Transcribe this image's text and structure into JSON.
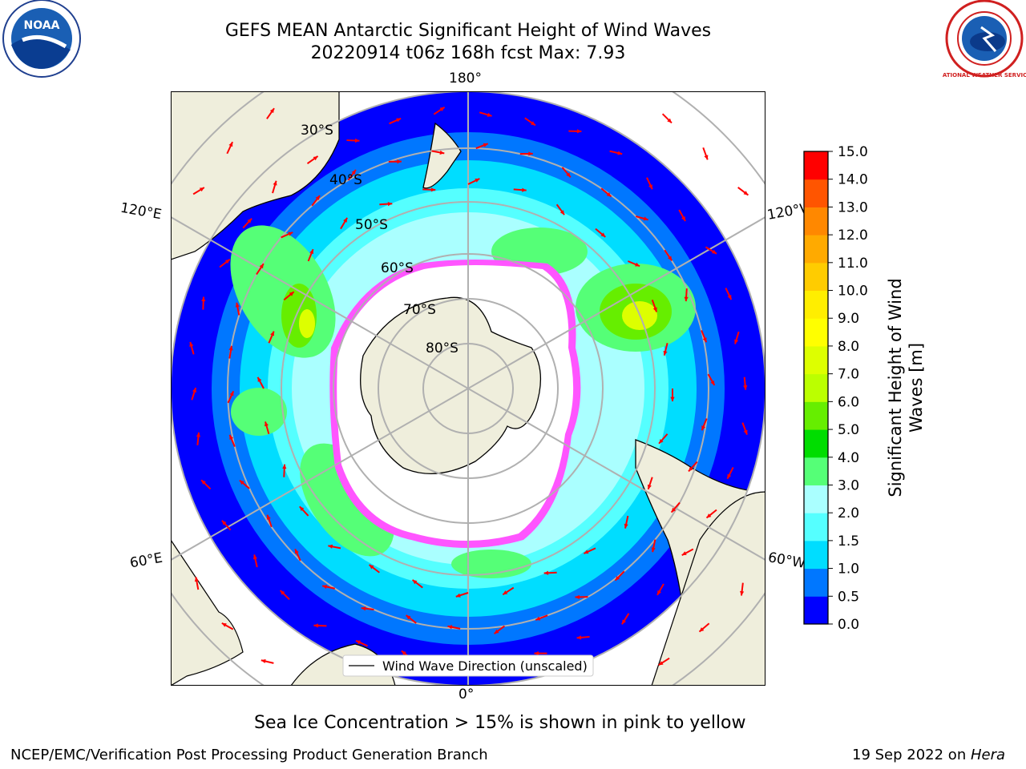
{
  "title": {
    "line1": "GEFS MEAN Antarctic Significant Height of Wind Waves",
    "line2": "20220914 t06z 168h fcst   Max: 7.93"
  },
  "map": {
    "lon_labels": {
      "top": "180°",
      "bottom": "0°",
      "upper_left": "120°E",
      "upper_right": "120°W",
      "lower_left": "60°E",
      "lower_right": "60°W"
    },
    "lat_labels": [
      "30°S",
      "40°S",
      "50°S",
      "60°S",
      "70°S",
      "80°S"
    ],
    "legend_label": "Wind Wave Direction (unscaled)",
    "colors": {
      "land": "#efeedc",
      "ice": "#ff55ff",
      "arrow": "#ff0000",
      "grid": "#b0b0b0"
    }
  },
  "colorbar": {
    "label_line1": "Significant Height of Wind",
    "label_line2": "Waves [m]",
    "ticks": [
      "0.0",
      "0.5",
      "1.0",
      "1.5",
      "2.0",
      "3.0",
      "4.0",
      "5.0",
      "6.0",
      "7.0",
      "8.0",
      "9.0",
      "10.0",
      "11.0",
      "12.0",
      "13.0",
      "14.0",
      "15.0"
    ],
    "colors": [
      "#0000ff",
      "#0077ff",
      "#00ddff",
      "#55ffff",
      "#aaffff",
      "#55ff77",
      "#00dd00",
      "#66ee00",
      "#bbff00",
      "#ddff00",
      "#ffff00",
      "#ffee00",
      "#ffcc00",
      "#ffaa00",
      "#ff8800",
      "#ff5500",
      "#ff0000"
    ]
  },
  "caption": "Sea Ice Concentration > 15% is shown in pink to yellow",
  "footer": {
    "left": "NCEP/EMC/Verification Post Processing Product Generation Branch",
    "right_date": "19 Sep 2022 on ",
    "right_machine": "Hera"
  },
  "logos": {
    "left": "NOAA",
    "right": "NATIONAL WEATHER SERVICE"
  }
}
